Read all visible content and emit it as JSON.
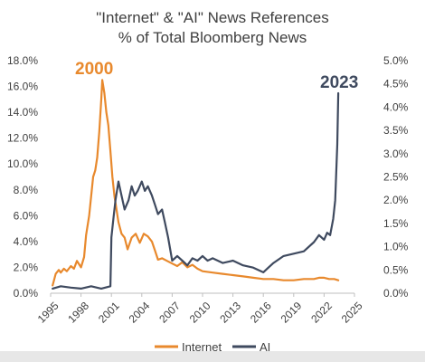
{
  "chart_data": {
    "type": "line",
    "title": "\"Internet\" & \"AI\" News References",
    "subtitle": "% of Total Bloomberg News",
    "x_ticks": [
      "1995",
      "1998",
      "2001",
      "2004",
      "2007",
      "2010",
      "2013",
      "2016",
      "2019",
      "2022",
      "2025"
    ],
    "xlim": [
      1995,
      2025
    ],
    "y_left_ticks": [
      "0.0%",
      "2.0%",
      "4.0%",
      "6.0%",
      "8.0%",
      "10.0%",
      "12.0%",
      "14.0%",
      "16.0%",
      "18.0%"
    ],
    "y_left_lim": [
      0,
      18
    ],
    "y_right_ticks": [
      "0.0%",
      "0.5%",
      "1.0%",
      "1.5%",
      "2.0%",
      "2.5%",
      "3.0%",
      "3.5%",
      "4.0%",
      "4.5%",
      "5.0%"
    ],
    "y_right_lim": [
      0,
      5
    ],
    "annotations": [
      {
        "text": "2000",
        "color": "#e8892d"
      },
      {
        "text": "2023",
        "color": "#3f4a5f"
      }
    ],
    "series": [
      {
        "name": "Internet",
        "axis": "left",
        "color": "#e8892d",
        "x": [
          1995.2,
          1995.5,
          1995.8,
          1996.0,
          1996.3,
          1996.6,
          1997.0,
          1997.3,
          1997.6,
          1998.0,
          1998.3,
          1998.5,
          1998.8,
          1999.0,
          1999.2,
          1999.4,
          1999.6,
          1999.8,
          2000.0,
          2000.1,
          2000.3,
          2000.5,
          2000.7,
          2000.9,
          2001.1,
          2001.3,
          2001.5,
          2001.7,
          2002.0,
          2002.3,
          2002.6,
          2003.0,
          2003.4,
          2003.8,
          2004.2,
          2004.6,
          2005.0,
          2005.3,
          2005.6,
          2006.0,
          2006.5,
          2007.0,
          2007.5,
          2008.0,
          2008.5,
          2009.0,
          2009.5,
          2010.0,
          2011.0,
          2012.0,
          2013.0,
          2014.0,
          2015.0,
          2016.0,
          2017.0,
          2018.0,
          2019.0,
          2020.0,
          2021.0,
          2021.5,
          2022.0,
          2022.5,
          2023.0,
          2023.4
        ],
        "values": [
          0.6,
          1.5,
          1.8,
          1.6,
          1.9,
          1.7,
          2.1,
          1.9,
          2.5,
          2.0,
          2.8,
          4.5,
          6.0,
          7.5,
          9.0,
          9.5,
          10.5,
          12.5,
          15.0,
          16.5,
          15.5,
          14.0,
          13.0,
          11.0,
          9.0,
          7.5,
          6.5,
          5.5,
          4.6,
          4.3,
          3.4,
          4.3,
          4.6,
          3.9,
          4.6,
          4.4,
          4.0,
          3.3,
          2.6,
          2.7,
          2.5,
          2.3,
          2.1,
          2.4,
          2.0,
          2.2,
          1.9,
          1.7,
          1.6,
          1.5,
          1.4,
          1.3,
          1.2,
          1.1,
          1.1,
          1.0,
          1.0,
          1.1,
          1.1,
          1.2,
          1.2,
          1.1,
          1.1,
          1.0
        ]
      },
      {
        "name": "AI",
        "axis": "right",
        "color": "#3f4a5f",
        "x": [
          1995.2,
          1996.0,
          1997.0,
          1998.0,
          1999.0,
          2000.0,
          2000.9,
          2001.0,
          2001.2,
          2001.4,
          2001.7,
          2002.0,
          2002.3,
          2002.7,
          2003.0,
          2003.3,
          2003.6,
          2004.0,
          2004.3,
          2004.6,
          2005.0,
          2005.3,
          2005.6,
          2006.0,
          2006.3,
          2006.6,
          2007.0,
          2007.5,
          2008.0,
          2008.5,
          2009.0,
          2009.5,
          2010.0,
          2010.5,
          2011.0,
          2012.0,
          2013.0,
          2014.0,
          2015.0,
          2016.0,
          2016.5,
          2017.0,
          2018.0,
          2019.0,
          2020.0,
          2021.0,
          2021.5,
          2022.0,
          2022.3,
          2022.6,
          2022.9,
          2023.1,
          2023.3,
          2023.4
        ],
        "values": [
          0.1,
          0.15,
          0.12,
          0.1,
          0.15,
          0.1,
          0.15,
          1.2,
          1.6,
          2.0,
          2.4,
          2.1,
          1.8,
          2.0,
          2.3,
          2.1,
          2.2,
          2.4,
          2.2,
          2.3,
          2.1,
          1.9,
          1.7,
          1.8,
          1.5,
          1.2,
          0.7,
          0.8,
          0.7,
          0.6,
          0.75,
          0.7,
          0.8,
          0.7,
          0.75,
          0.65,
          0.7,
          0.6,
          0.55,
          0.45,
          0.55,
          0.65,
          0.8,
          0.85,
          0.9,
          1.1,
          1.25,
          1.15,
          1.3,
          1.25,
          1.6,
          2.0,
          3.2,
          4.3
        ]
      }
    ]
  }
}
